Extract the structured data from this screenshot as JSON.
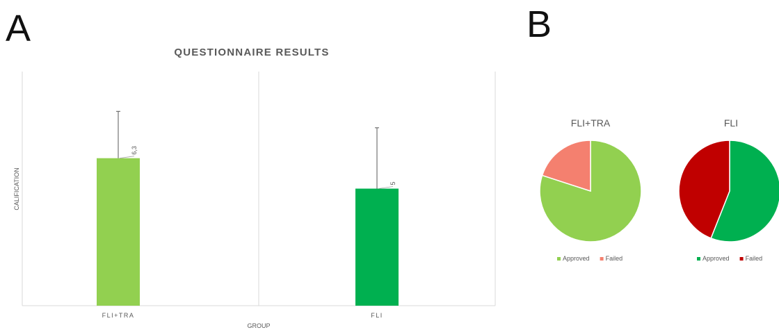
{
  "panels": {
    "a": "A",
    "b": "B"
  },
  "chart_data": [
    {
      "type": "bar",
      "title": "QUESTIONNAIRE RESULTS",
      "xlabel": "GROUP",
      "ylabel": "CALIFICATION",
      "categories": [
        "FLI+TRA",
        "FLI"
      ],
      "values": [
        6.3,
        5
      ],
      "value_labels": [
        "6,3",
        "5"
      ],
      "error_upper": [
        8.3,
        7.6
      ],
      "ylim": [
        0,
        10
      ],
      "colors": [
        "#92d050",
        "#00b050"
      ],
      "grid": false,
      "axis_tick_labels": false
    },
    {
      "type": "pie",
      "title": "FLI+TRA",
      "categories": [
        "Approved",
        "Failed"
      ],
      "values": [
        80,
        20
      ],
      "colors": [
        "#92d050",
        "#f4806f"
      ],
      "legend_position": "bottom"
    },
    {
      "type": "pie",
      "title": "FLI",
      "categories": [
        "Approved",
        "Failed"
      ],
      "values": [
        56,
        44
      ],
      "colors": [
        "#00b050",
        "#c00000"
      ],
      "legend_position": "bottom"
    }
  ]
}
